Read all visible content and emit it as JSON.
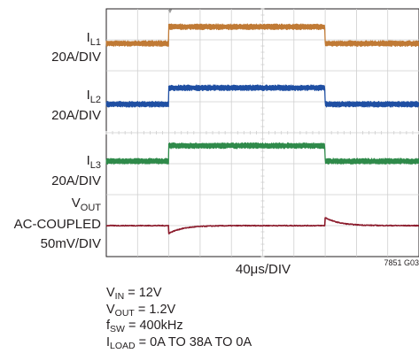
{
  "chart_data": {
    "type": "line",
    "xlabel": "40μs/DIV",
    "figure_id": "7851 G03",
    "grid": true,
    "grid_divisions": {
      "x": 10,
      "y": 8
    },
    "trigger_marker": "▼",
    "x": {
      "unit": "div",
      "range": [
        0,
        10
      ],
      "load_step_up_div": 2.0,
      "load_step_down_div": 7.0
    },
    "series": [
      {
        "name": "IL1",
        "label_main": "I",
        "label_sub": "L1",
        "scale": "20A/DIV",
        "color": "#c07a35",
        "scale_per_div": "20A/DIV",
        "low_level_div": 6.88,
        "high_level_div": 7.42,
        "noise_div": 0.09
      },
      {
        "name": "IL2",
        "label_main": "I",
        "label_sub": "L2",
        "scale": "20A/DIV",
        "color": "#1f4fa3",
        "scale_per_div": "20A/DIV",
        "low_level_div": 4.92,
        "high_level_div": 5.45,
        "noise_div": 0.09
      },
      {
        "name": "IL3",
        "label_main": "I",
        "label_sub": "L3",
        "scale": "20A/DIV",
        "color": "#2f8a4a",
        "scale_per_div": "20A/DIV",
        "low_level_div": 3.08,
        "high_level_div": 3.58,
        "noise_div": 0.09
      },
      {
        "name": "VOUT",
        "label_main": "V",
        "label_sub": "OUT",
        "coupling": "AC-COUPLED",
        "scale": "50mV/DIV",
        "color": "#8b1a2b",
        "scale_per_div": "50mV/DIV",
        "steady_level_div": 1.0,
        "step_up_dip_div": -0.25,
        "step_down_spike_div": 0.26,
        "recovery_div": 1.2
      }
    ]
  },
  "conditions": [
    {
      "main": "V",
      "sub": "IN",
      "rest": " = 12V"
    },
    {
      "main": "V",
      "sub": "OUT",
      "rest": " = 1.2V"
    },
    {
      "main": "f",
      "sub": "SW",
      "rest": " = 400kHz"
    },
    {
      "main": "I",
      "sub": "LOAD",
      "rest": " = 0A TO 38A TO 0A"
    }
  ]
}
